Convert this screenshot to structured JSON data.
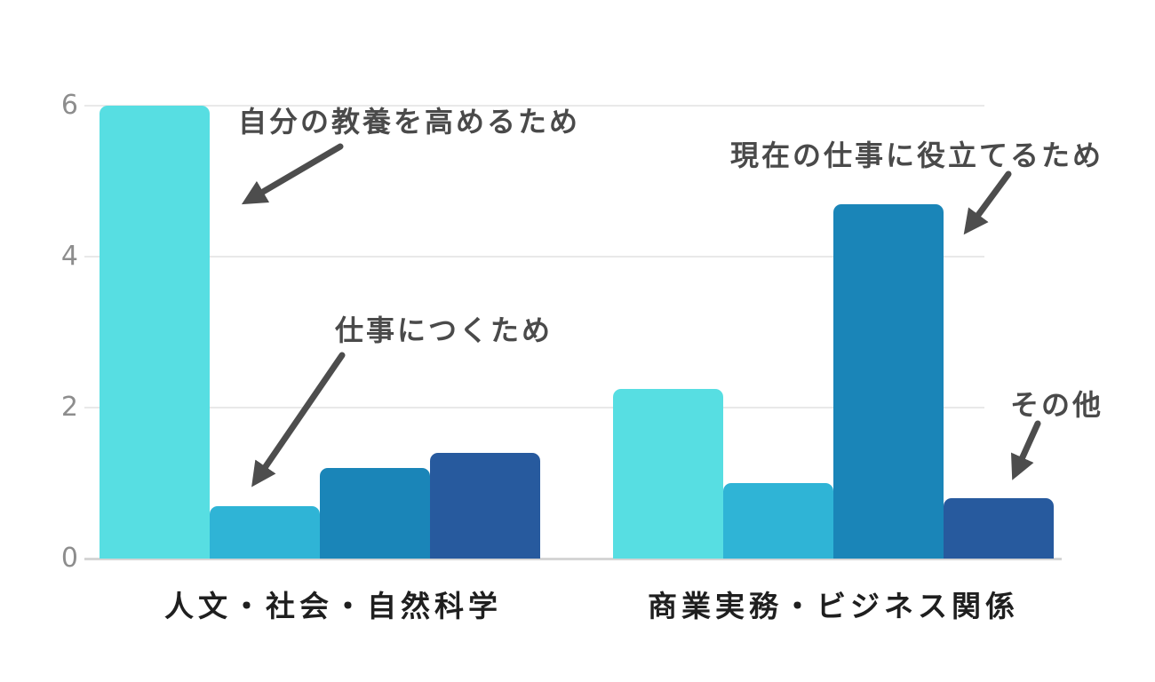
{
  "chart_data": {
    "type": "bar",
    "title": "",
    "categories": [
      "人文・社会・自然科学",
      "商業実務・ビジネス関係"
    ],
    "series": [
      {
        "name": "自分の教養を高めるため",
        "color": "#57dee2",
        "values": [
          6,
          2.25
        ]
      },
      {
        "name": "仕事につくため",
        "color": "#2fb4d6",
        "values": [
          0.7,
          1.0
        ]
      },
      {
        "name": "現在の仕事に役立てるため",
        "color": "#1a85b8",
        "values": [
          1.2,
          4.7
        ]
      },
      {
        "name": "その他",
        "color": "#275a9e",
        "values": [
          1.4,
          0.8
        ]
      }
    ],
    "yticks": [
      6,
      4,
      2,
      0
    ],
    "ylim": [
      0,
      6
    ],
    "grid": true,
    "legend_position": "none",
    "annotations": [
      {
        "text": "自分の教養を高めるため",
        "points_to": "人文・社会・自然科学 bar 1"
      },
      {
        "text": "仕事につくため",
        "points_to": "人文・社会・自然科学 bar 2"
      },
      {
        "text": "現在の仕事に役立てるため",
        "points_to": "商業実務・ビジネス関係 bar 3"
      },
      {
        "text": "その他",
        "points_to": "商業実務・ビジネス関係 bar 4"
      }
    ],
    "colors": {
      "annotation_text": "#4a4a4a",
      "arrow": "#4d4d4d",
      "category_label": "#1f1f1f",
      "tick_label": "#8d8d8d",
      "gridline": "#e9e9e9",
      "baseline": "#d5d5d5",
      "background": "#ffffff"
    }
  }
}
